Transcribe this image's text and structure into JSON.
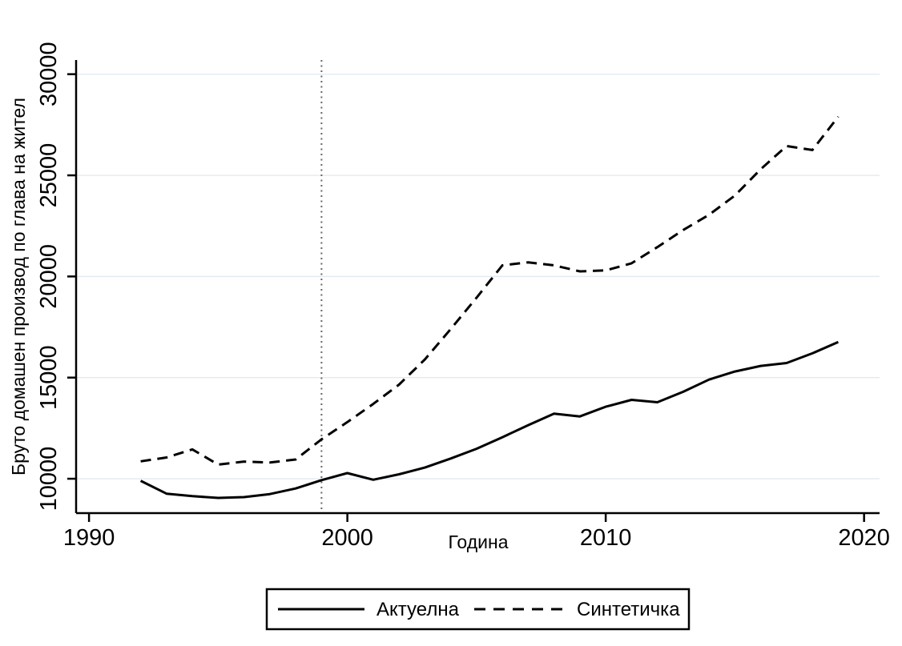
{
  "figure": {
    "background_color": "#ffffff",
    "line_color": "#000000",
    "gridline_color": "#e3eaf0"
  },
  "chart_data": {
    "type": "line",
    "x": [
      1992,
      1993,
      1994,
      1995,
      1996,
      1997,
      1998,
      1999,
      2000,
      2001,
      2002,
      2003,
      2004,
      2005,
      2006,
      2007,
      2008,
      2009,
      2010,
      2011,
      2012,
      2013,
      2014,
      2015,
      2016,
      2017,
      2018,
      2019
    ],
    "series": [
      {
        "name": "Актуелна",
        "style": "solid",
        "color": "#000000",
        "values": [
          9900,
          9260,
          9140,
          9050,
          9090,
          9240,
          9520,
          9930,
          10280,
          9950,
          10220,
          10550,
          11000,
          11480,
          12050,
          12650,
          13220,
          13080,
          13560,
          13900,
          13780,
          14300,
          14900,
          15300,
          15580,
          15720,
          16200,
          16760
        ]
      },
      {
        "name": "Синтетичка",
        "style": "dashed",
        "color": "#000000",
        "values": [
          10860,
          11050,
          11450,
          10700,
          10850,
          10800,
          10950,
          11950,
          12800,
          13700,
          14650,
          15900,
          17400,
          18950,
          20550,
          20700,
          20550,
          20250,
          20300,
          20650,
          21450,
          22300,
          23050,
          24000,
          25300,
          26450,
          26250,
          27900
        ]
      }
    ],
    "title": "",
    "xlabel": "Година",
    "ylabel": "Бруто домашен производ по глава на жител",
    "xlim": [
      1989.5,
      2020.6
    ],
    "ylim": [
      8300,
      30700
    ],
    "xticks": [
      1990,
      2000,
      2010,
      2020
    ],
    "yticks": [
      10000,
      15000,
      20000,
      25000,
      30000
    ],
    "xtick_labels": [
      "1990",
      "2000",
      "2010",
      "2020"
    ],
    "ytick_labels": [
      "10000",
      "15000",
      "20000",
      "25000",
      "30000"
    ],
    "ytick_label_angle": 90,
    "grid": "horizontal-only",
    "annotations": [
      {
        "type": "vline",
        "x": 1999,
        "style": "dotted",
        "color": "#666666"
      }
    ],
    "legend": {
      "position": "bottom-center",
      "border": true,
      "entries": [
        "Актуелна",
        "Синтетичка"
      ]
    }
  }
}
